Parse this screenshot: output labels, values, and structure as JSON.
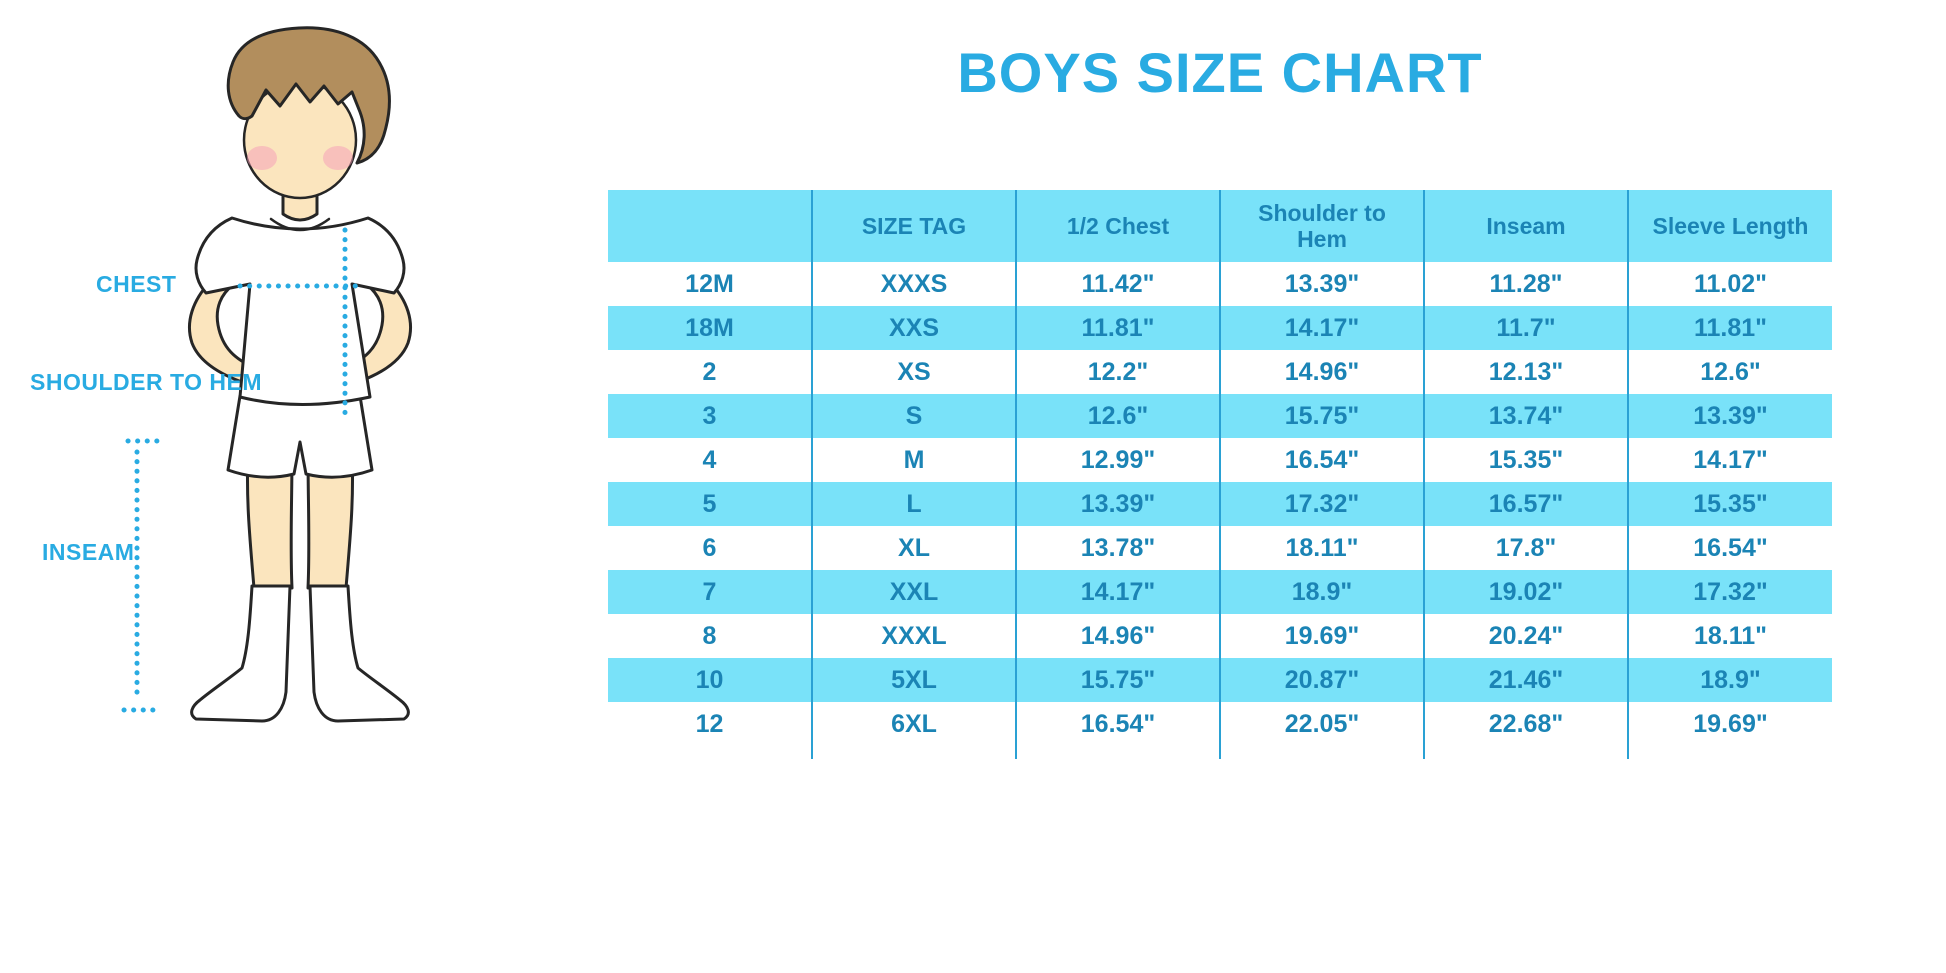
{
  "title": "BOYS SIZE CHART",
  "diagram": {
    "labels": {
      "chest": "CHEST",
      "shoulder_to_hem": "SHOULDER TO HEM",
      "inseam": "INSEAM"
    },
    "figure": "boy in white t-shirt, shorts and knee socks with dotted measurement lines"
  },
  "table": {
    "headers": [
      "",
      "SIZE TAG",
      "1/2 Chest",
      "Shoulder to Hem",
      "Inseam",
      "Sleeve Length"
    ],
    "rows": [
      [
        "12M",
        "XXXS",
        "11.42\"",
        "13.39\"",
        "11.28\"",
        "11.02\""
      ],
      [
        "18M",
        "XXS",
        "11.81\"",
        "14.17\"",
        "11.7\"",
        "11.81\""
      ],
      [
        "2",
        "XS",
        "12.2\"",
        "14.96\"",
        "12.13\"",
        "12.6\""
      ],
      [
        "3",
        "S",
        "12.6\"",
        "15.75\"",
        "13.74\"",
        "13.39\""
      ],
      [
        "4",
        "M",
        "12.99\"",
        "16.54\"",
        "15.35\"",
        "14.17\""
      ],
      [
        "5",
        "L",
        "13.39\"",
        "17.32\"",
        "16.57\"",
        "15.35\""
      ],
      [
        "6",
        "XL",
        "13.78\"",
        "18.11\"",
        "17.8\"",
        "16.54\""
      ],
      [
        "7",
        "XXL",
        "14.17\"",
        "18.9\"",
        "19.02\"",
        "17.32\""
      ],
      [
        "8",
        "XXXL",
        "14.96\"",
        "19.69\"",
        "20.24\"",
        "18.11\""
      ],
      [
        "10",
        "5XL",
        "15.75\"",
        "20.87\"",
        "21.46\"",
        "18.9\""
      ],
      [
        "12",
        "6XL",
        "16.54\"",
        "22.05\"",
        "22.68\"",
        "19.69\""
      ]
    ]
  },
  "colors": {
    "accent": "#29ABE2",
    "tableText": "#1B84B5",
    "rowFill": "#79E2F9",
    "gridLine": "#2AA1D4",
    "skin": "#FBE5BE",
    "hair": "#B28E5D",
    "blush": "#F59BB8",
    "outline": "#262626"
  }
}
